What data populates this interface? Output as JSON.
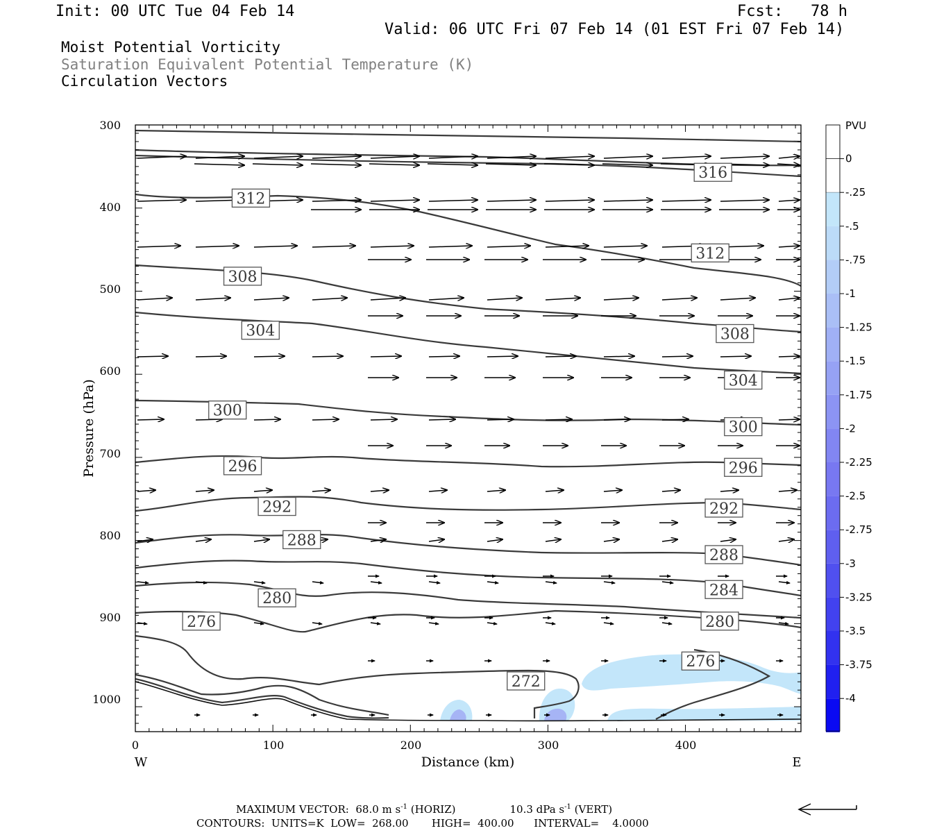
{
  "header": {
    "init": "Init: 00 UTC Tue 04 Feb 14",
    "fcst": "Fcst:   78 h",
    "valid": "Valid: 06 UTC Fri 07 Feb 14 (01 EST Fri 07 Feb 14)"
  },
  "fields": {
    "line1": "Moist Potential Vorticity",
    "line2": "Saturation Equivalent Potential Temperature (K)",
    "line3": "Circulation Vectors"
  },
  "footer": {
    "vector_prefix": "MAXIMUM VECTOR:  68.0 m s",
    "vector_horiz": "(HORIZ)",
    "vector_vert_prefix": "10.3 dPa s",
    "vector_vert": "(VERT)",
    "exponent": "-1",
    "contours": "CONTOURS:  UNITS=K  LOW=  268.00       HIGH=  400.00      INTERVAL=    4.0000"
  },
  "colors": {
    "contour": "#3a3a3a",
    "axis": "#000000",
    "pv_light": "#c3e6fa",
    "pv_mid": "#a6b4f5",
    "pv_dark": "#7c7cf0"
  },
  "chart_data": {
    "type": "contour",
    "xlabel": "Distance (km)",
    "ylabel": "Pressure (hPa)",
    "xlim": [
      0,
      484
    ],
    "ylim": [
      300,
      1030
    ],
    "x_ticks": [
      "0",
      "100",
      "200",
      "300",
      "400"
    ],
    "y_ticks": [
      "300",
      "400",
      "500",
      "600",
      "700",
      "800",
      "900",
      "1000"
    ],
    "x_end_labels": {
      "left": "W",
      "right": "E"
    },
    "contour_labels": [
      {
        "text": "316",
        "x": 420,
        "y": 357
      },
      {
        "text": "312",
        "x": 84,
        "y": 388
      },
      {
        "text": "312",
        "x": 418,
        "y": 454
      },
      {
        "text": "308",
        "x": 78,
        "y": 482
      },
      {
        "text": "308",
        "x": 436,
        "y": 551
      },
      {
        "text": "304",
        "x": 91,
        "y": 547
      },
      {
        "text": "304",
        "x": 442,
        "y": 607
      },
      {
        "text": "300",
        "x": 67,
        "y": 643
      },
      {
        "text": "300",
        "x": 442,
        "y": 663
      },
      {
        "text": "296",
        "x": 78,
        "y": 710
      },
      {
        "text": "296",
        "x": 442,
        "y": 712
      },
      {
        "text": "292",
        "x": 103,
        "y": 759
      },
      {
        "text": "292",
        "x": 428,
        "y": 761
      },
      {
        "text": "288",
        "x": 121,
        "y": 799
      },
      {
        "text": "288",
        "x": 428,
        "y": 817
      },
      {
        "text": "284",
        "x": 428,
        "y": 859
      },
      {
        "text": "280",
        "x": 103,
        "y": 869
      },
      {
        "text": "280",
        "x": 425,
        "y": 897
      },
      {
        "text": "276",
        "x": 48,
        "y": 897
      },
      {
        "text": "276",
        "x": 411,
        "y": 945
      },
      {
        "text": "272",
        "x": 284,
        "y": 969
      }
    ],
    "colorbar": {
      "units": "PVU",
      "labels": [
        "0",
        "-.25",
        "-.5",
        "-.75",
        "-1",
        "-1.25",
        "-1.5",
        "-1.75",
        "-2",
        "-2.25",
        "-2.5",
        "-2.75",
        "-3",
        "-3.25",
        "-3.5",
        "-3.75",
        "-4"
      ]
    }
  }
}
